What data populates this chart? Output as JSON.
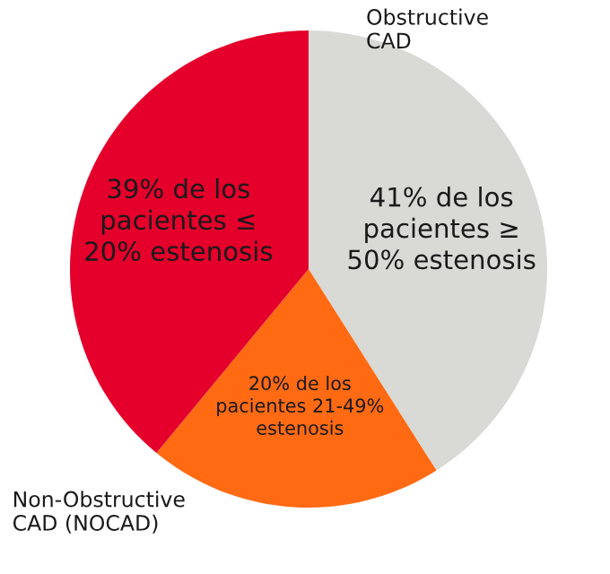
{
  "chart_data": {
    "type": "pie",
    "categories": [
      null,
      null,
      null
    ],
    "values": [
      41,
      20,
      39
    ],
    "colors": [
      "#d9d9d6",
      "#ff6a13",
      "#e4002b"
    ],
    "value_labels": [
      "41% de los\npacientes ≥\n50% estenosis",
      "20% de los\npacientes 21-49%\nestenosis",
      "39% de los\npacientes ≤\n20% estenosis"
    ],
    "annotations": [
      "Obstructive\nCAD",
      "Non-Obstructive\nCAD (NOCAD)"
    ]
  }
}
